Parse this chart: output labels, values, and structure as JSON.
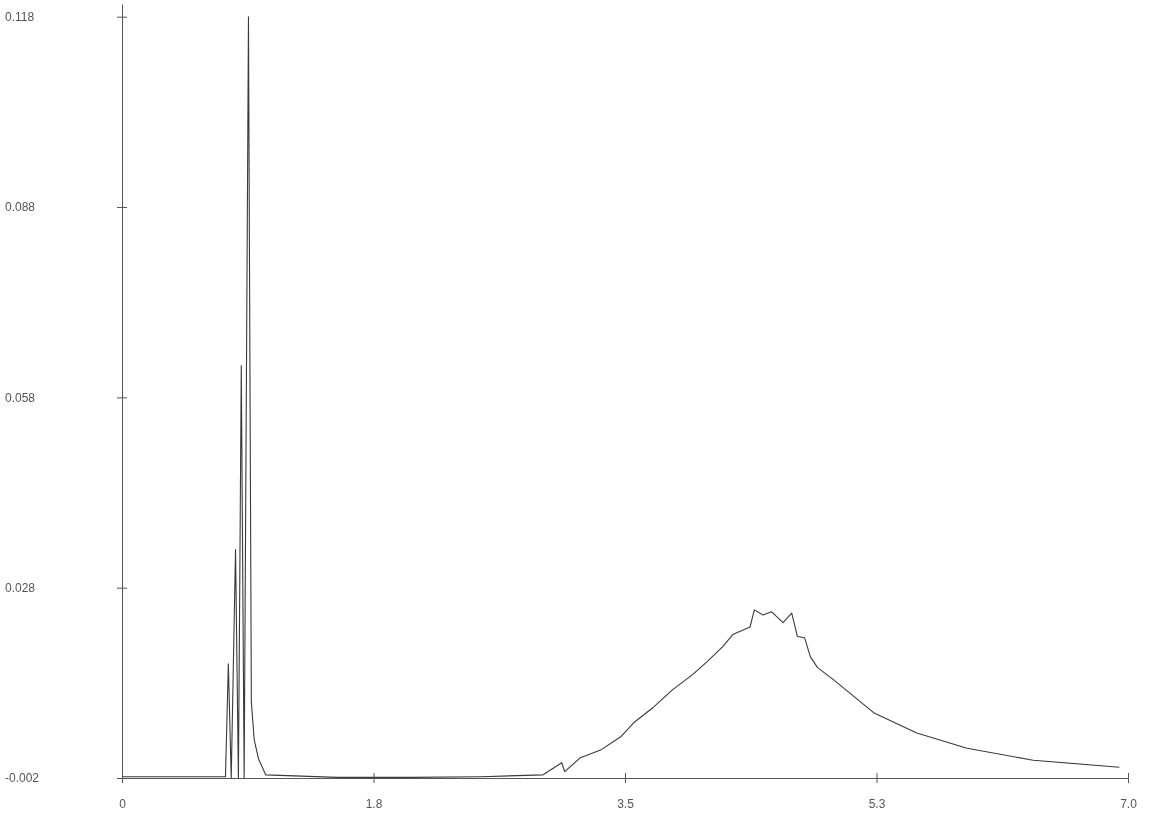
{
  "chart_data": {
    "type": "line",
    "xlim": [
      0,
      7.0
    ],
    "ylim": [
      -0.002,
      0.12
    ],
    "xticks": [
      0,
      {
        "value": 1.75,
        "label": "1.8"
      },
      3.5,
      {
        "value": 5.25,
        "label": "5.3"
      },
      {
        "value": 7,
        "label": "7.0"
      }
    ],
    "yticks": [
      -0.002,
      0.028,
      0.058,
      0.088,
      0.118
    ],
    "grid": false,
    "marker": "none",
    "line_style": "solid",
    "series": [
      {
        "color": "#3a3a3a",
        "x": [
          0,
          0.5,
          0.72,
          0.74,
          0.76,
          0.79,
          0.81,
          0.83,
          0.85,
          0.88,
          0.9,
          0.92,
          0.95,
          1.0,
          1.5,
          2.0,
          2.5,
          2.93,
          3.06,
          3.08,
          3.19,
          3.33,
          3.47,
          3.56,
          3.7,
          3.83,
          3.97,
          4.07,
          4.18,
          4.25,
          4.37,
          4.4,
          4.46,
          4.52,
          4.6,
          4.66,
          4.7,
          4.75,
          4.79,
          4.84,
          4.95,
          5.23,
          5.53,
          5.88,
          6.34,
          6.94
        ],
        "values": [
          -0.0018,
          -0.0018,
          -0.0018,
          0.016,
          -0.002,
          0.034,
          -0.002,
          0.063,
          -0.002,
          0.118,
          0.01,
          0.004,
          0.001,
          -0.0015,
          -0.0019,
          -0.0019,
          -0.0018,
          -0.0015,
          0.0004,
          -0.001,
          0.0012,
          0.0024,
          0.0045,
          0.0067,
          0.0092,
          0.0119,
          0.0143,
          0.0163,
          0.0187,
          0.0206,
          0.0218,
          0.0245,
          0.0237,
          0.0242,
          0.0225,
          0.024,
          0.0203,
          0.0201,
          0.0171,
          0.0154,
          0.0135,
          0.0083,
          0.0051,
          0.0027,
          0.0008,
          -0.0003
        ]
      }
    ]
  }
}
